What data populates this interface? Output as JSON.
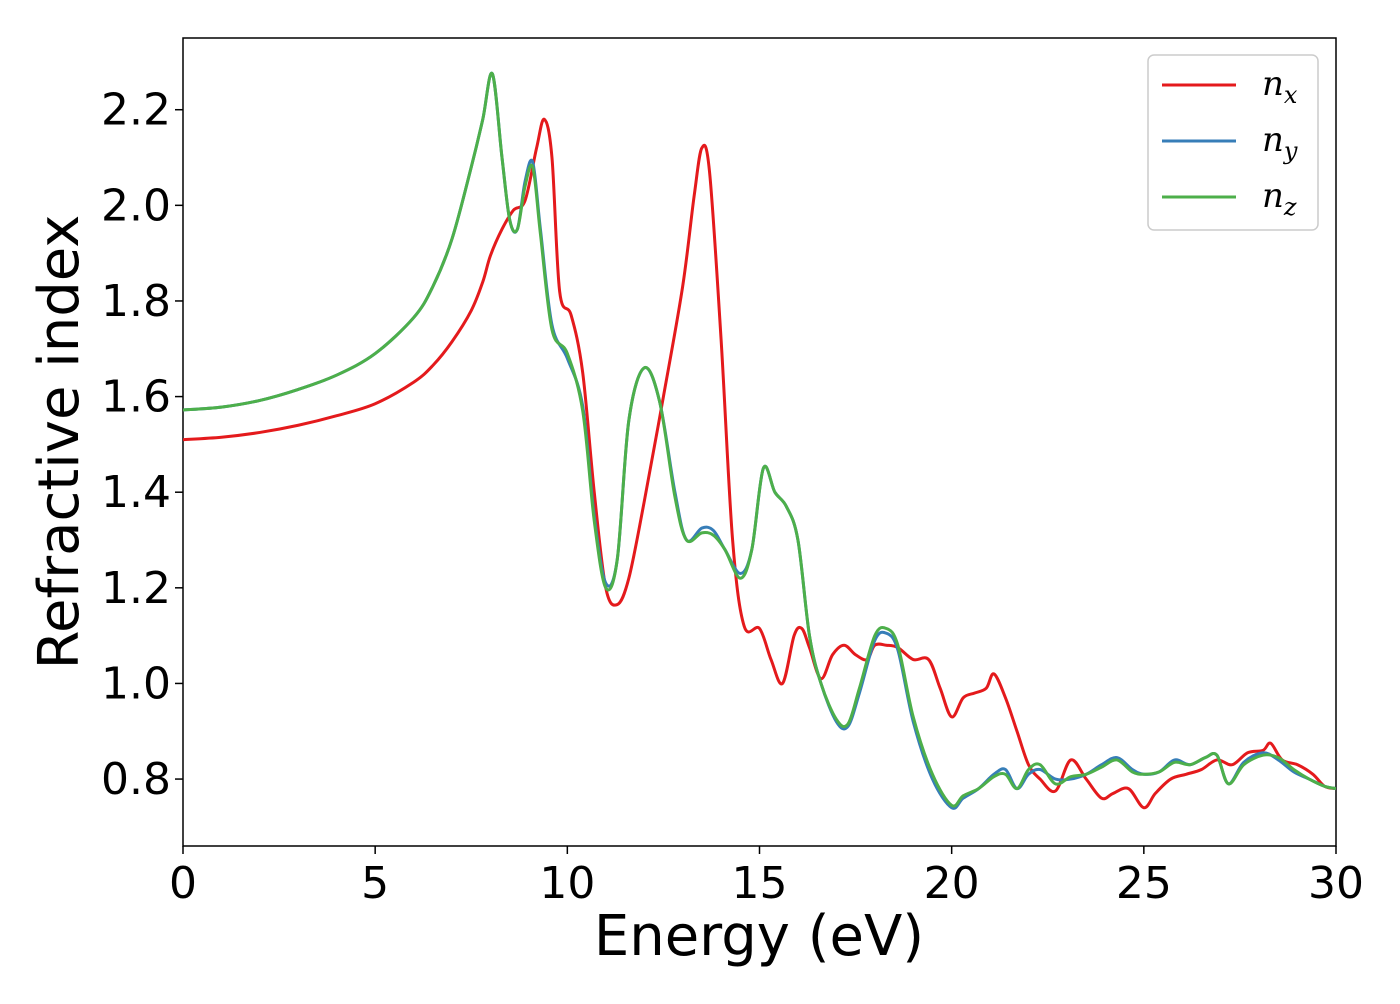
{
  "chart_data": {
    "type": "line",
    "xlabel": "Energy (eV)",
    "ylabel": "Refractive index",
    "xlim": [
      0,
      30
    ],
    "ylim": [
      0.66,
      2.35
    ],
    "xticks": [
      0,
      5,
      10,
      15,
      20,
      25,
      30
    ],
    "xtick_labels": [
      "0",
      "5",
      "10",
      "15",
      "20",
      "25",
      "30"
    ],
    "yticks": [
      0.8,
      1.0,
      1.2,
      1.4,
      1.6,
      1.8,
      2.0,
      2.2
    ],
    "ytick_labels": [
      "0.8",
      "1.0",
      "1.2",
      "1.4",
      "1.6",
      "1.8",
      "2.0",
      "2.2"
    ],
    "grid": false,
    "legend_position": "top-right",
    "series": [
      {
        "name": "n",
        "subscript": "x",
        "color": "#e41a1c",
        "x": [
          0,
          1,
          2,
          3,
          4,
          5,
          6,
          6.5,
          7,
          7.5,
          7.8,
          8,
          8.3,
          8.6,
          8.9,
          9.2,
          9.4,
          9.6,
          9.8,
          10.1,
          10.4,
          10.7,
          11,
          11.3,
          11.6,
          12,
          12.5,
          13,
          13.3,
          13.5,
          13.7,
          14,
          14.3,
          14.6,
          15,
          15.3,
          15.6,
          15.9,
          16.1,
          16.3,
          16.6,
          16.9,
          17.2,
          17.5,
          17.8,
          18,
          18.3,
          18.6,
          19,
          19.4,
          19.7,
          20,
          20.3,
          20.6,
          20.9,
          21.1,
          21.4,
          21.7,
          22,
          22.3,
          22.7,
          23.1,
          23.5,
          23.9,
          24.2,
          24.6,
          25,
          25.3,
          25.7,
          26.1,
          26.5,
          26.9,
          27.3,
          27.7,
          28.1,
          28.3,
          28.6,
          29,
          29.4,
          29.7,
          30
        ],
        "y": [
          1.51,
          1.515,
          1.525,
          1.54,
          1.56,
          1.585,
          1.63,
          1.665,
          1.715,
          1.78,
          1.84,
          1.895,
          1.95,
          1.99,
          2.01,
          2.12,
          2.18,
          2.1,
          1.82,
          1.77,
          1.65,
          1.4,
          1.2,
          1.165,
          1.22,
          1.38,
          1.6,
          1.83,
          2.02,
          2.12,
          2.07,
          1.72,
          1.3,
          1.12,
          1.115,
          1.05,
          1.0,
          1.1,
          1.115,
          1.075,
          1.01,
          1.06,
          1.08,
          1.06,
          1.05,
          1.08,
          1.08,
          1.075,
          1.05,
          1.05,
          0.99,
          0.93,
          0.97,
          0.98,
          0.99,
          1.02,
          0.97,
          0.9,
          0.83,
          0.8,
          0.775,
          0.84,
          0.8,
          0.76,
          0.77,
          0.78,
          0.74,
          0.77,
          0.8,
          0.81,
          0.82,
          0.84,
          0.83,
          0.855,
          0.86,
          0.875,
          0.84,
          0.83,
          0.81,
          0.785,
          0.78
        ]
      },
      {
        "name": "n",
        "subscript": "y",
        "color": "#377eb8",
        "x": [
          0,
          1,
          2,
          3,
          4,
          5,
          6,
          6.5,
          7,
          7.5,
          7.8,
          8.05,
          8.3,
          8.5,
          8.7,
          8.9,
          9.1,
          9.3,
          9.6,
          10,
          10.4,
          10.7,
          11,
          11.3,
          11.6,
          12,
          12.4,
          12.8,
          13.1,
          13.5,
          13.8,
          14.1,
          14.5,
          14.8,
          15.1,
          15.4,
          15.7,
          16,
          16.3,
          16.6,
          17,
          17.3,
          17.6,
          18,
          18.3,
          18.6,
          19,
          19.5,
          20,
          20.3,
          20.7,
          21.1,
          21.4,
          21.7,
          22,
          22.3,
          22.7,
          23.1,
          23.5,
          23.9,
          24.3,
          24.7,
          25,
          25.4,
          25.8,
          26.2,
          26.6,
          26.9,
          27.2,
          27.6,
          28.1,
          28.5,
          28.9,
          29.3,
          29.7,
          30
        ],
        "y": [
          1.572,
          1.578,
          1.592,
          1.615,
          1.645,
          1.69,
          1.765,
          1.83,
          1.93,
          2.08,
          2.18,
          2.275,
          2.1,
          1.97,
          1.95,
          2.05,
          2.09,
          1.95,
          1.75,
          1.68,
          1.58,
          1.35,
          1.21,
          1.26,
          1.55,
          1.66,
          1.59,
          1.4,
          1.3,
          1.325,
          1.32,
          1.28,
          1.23,
          1.28,
          1.45,
          1.4,
          1.37,
          1.3,
          1.1,
          1.0,
          0.92,
          0.91,
          0.98,
          1.09,
          1.105,
          1.07,
          0.92,
          0.8,
          0.74,
          0.76,
          0.78,
          0.81,
          0.82,
          0.78,
          0.81,
          0.82,
          0.8,
          0.8,
          0.81,
          0.83,
          0.845,
          0.82,
          0.81,
          0.815,
          0.84,
          0.83,
          0.845,
          0.85,
          0.79,
          0.835,
          0.855,
          0.84,
          0.815,
          0.8,
          0.785,
          0.78
        ]
      },
      {
        "name": "n",
        "subscript": "z",
        "color": "#4daf4a",
        "x": [
          0,
          1,
          2,
          3,
          4,
          5,
          6,
          6.5,
          7,
          7.5,
          7.8,
          8.05,
          8.3,
          8.5,
          8.7,
          8.9,
          9.1,
          9.3,
          9.6,
          10,
          10.4,
          10.7,
          11,
          11.3,
          11.6,
          12,
          12.4,
          12.8,
          13.1,
          13.5,
          13.8,
          14.1,
          14.5,
          14.8,
          15.1,
          15.4,
          15.7,
          16,
          16.3,
          16.6,
          17,
          17.3,
          17.6,
          18,
          18.3,
          18.6,
          19,
          19.5,
          20,
          20.3,
          20.7,
          21.1,
          21.4,
          21.7,
          22,
          22.3,
          22.7,
          23.1,
          23.5,
          23.9,
          24.3,
          24.7,
          25,
          25.4,
          25.8,
          26.2,
          26.6,
          26.9,
          27.2,
          27.6,
          28.1,
          28.5,
          28.9,
          29.3,
          29.7,
          30
        ],
        "y": [
          1.572,
          1.578,
          1.592,
          1.615,
          1.645,
          1.69,
          1.765,
          1.83,
          1.93,
          2.08,
          2.18,
          2.275,
          2.1,
          1.97,
          1.95,
          2.04,
          2.08,
          1.94,
          1.74,
          1.69,
          1.57,
          1.34,
          1.2,
          1.26,
          1.55,
          1.66,
          1.59,
          1.39,
          1.3,
          1.315,
          1.31,
          1.28,
          1.22,
          1.28,
          1.45,
          1.4,
          1.37,
          1.3,
          1.1,
          1.0,
          0.925,
          0.915,
          0.99,
          1.1,
          1.115,
          1.08,
          0.93,
          0.81,
          0.745,
          0.765,
          0.78,
          0.805,
          0.81,
          0.78,
          0.82,
          0.83,
          0.79,
          0.805,
          0.81,
          0.825,
          0.84,
          0.815,
          0.81,
          0.815,
          0.835,
          0.83,
          0.845,
          0.85,
          0.79,
          0.83,
          0.85,
          0.845,
          0.82,
          0.8,
          0.785,
          0.78
        ]
      }
    ]
  }
}
